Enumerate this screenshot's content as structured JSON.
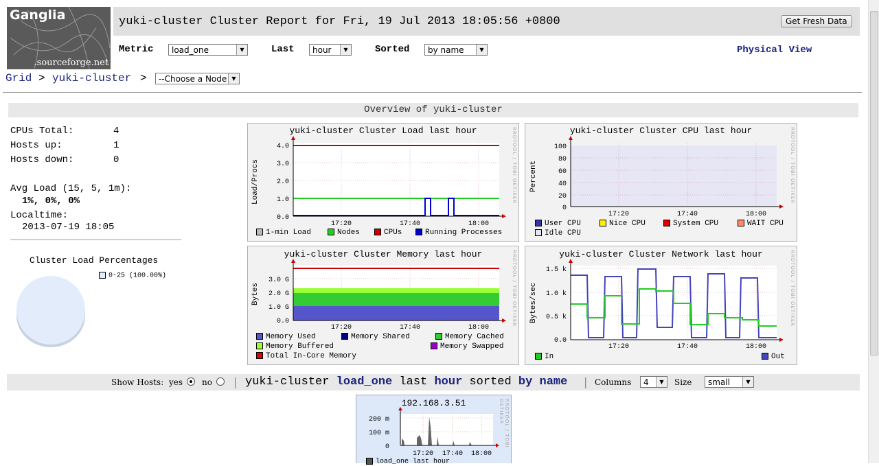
{
  "header": {
    "logo_name": "Ganglia",
    "logo_sub": ".sourceforge.net",
    "title": "yuki-cluster Cluster Report for Fri, 19 Jul 2013 18:05:56 +0800",
    "fresh_button": "Get Fresh Data",
    "metric_label": "Metric",
    "metric_value": "load_one",
    "last_label": "Last",
    "last_value": "hour",
    "sorted_label": "Sorted",
    "sorted_value": "by name",
    "physical_view": "Physical View"
  },
  "breadcrumb": {
    "grid": "Grid",
    "sep1": ">",
    "cluster": "yuki-cluster",
    "sep2": ">",
    "node_select": "--Choose a Node"
  },
  "overview": {
    "title": "Overview of yuki-cluster",
    "cpus_label": "CPUs Total:",
    "cpus_value": "4",
    "hosts_up_label": "Hosts up:",
    "hosts_up_value": "1",
    "hosts_down_label": "Hosts down:",
    "hosts_down_value": "0",
    "avg_load_label": "Avg Load (15, 5, 1m):",
    "avg_load_value": "1%, 0%, 0%",
    "localtime_label": "Localtime:",
    "localtime_value": "2013-07-19 18:05",
    "pie_title": "Cluster Load Percentages",
    "pie_legend": "0-25 (100.00%)"
  },
  "graphs": {
    "rrd": "RRDTOOL / TOBI OETIKER",
    "x_ticks": [
      "17:20",
      "17:40",
      "18:00"
    ],
    "load": {
      "title": "yuki-cluster Cluster Load last hour",
      "ylabel": "Load/Procs",
      "yticks": [
        "4.0",
        "3.0",
        "2.0",
        "1.0",
        "0.0"
      ],
      "legend": [
        "1-min Load",
        "Nodes",
        "CPUs",
        "Running Processes"
      ]
    },
    "cpu": {
      "title": "yuki-cluster Cluster CPU last hour",
      "ylabel": "Percent",
      "yticks": [
        "100",
        "80",
        "60",
        "40",
        "20",
        "0"
      ],
      "legend": [
        "User CPU",
        "Nice CPU",
        "System CPU",
        "WAIT CPU",
        "Idle CPU"
      ]
    },
    "memory": {
      "title": "yuki-cluster Cluster Memory last hour",
      "ylabel": "Bytes",
      "yticks": [
        "3.0 G",
        "2.0 G",
        "1.0 G",
        "0.0"
      ],
      "legend": [
        "Memory Used",
        "Memory Shared",
        "Memory Cached",
        "Memory Buffered",
        "Memory Swapped",
        "Total In-Core Memory"
      ]
    },
    "network": {
      "title": "yuki-cluster Cluster Network last hour",
      "ylabel": "Bytes/sec",
      "yticks": [
        "1.5 k",
        "1.0 k",
        "0.5 k",
        "0.0"
      ],
      "legend": [
        "In",
        "Out"
      ]
    }
  },
  "hostbar": {
    "show_hosts": "Show Hosts:",
    "yes": "yes",
    "no": "no",
    "sep": "|",
    "cluster": "yuki-cluster",
    "metric": "load_one",
    "last": "last",
    "range": "hour",
    "sorted": "sorted",
    "by": "by name",
    "sep2": "|",
    "columns_label": "Columns",
    "columns_value": "4",
    "size_label": "Size",
    "size_value": "small"
  },
  "host_graph": {
    "title": "192.168.3.51",
    "yticks": [
      "200 m",
      "100 m",
      "0"
    ],
    "x_ticks": [
      "17:20",
      "17:40",
      "18:00"
    ],
    "legend": "load_one last hour"
  },
  "colors": {
    "red": "#cc0000",
    "green": "#22cc22",
    "blue": "#0000cc",
    "memused": "#5555cc",
    "memcached": "#33cc33",
    "membuffered": "#99ff33"
  }
}
